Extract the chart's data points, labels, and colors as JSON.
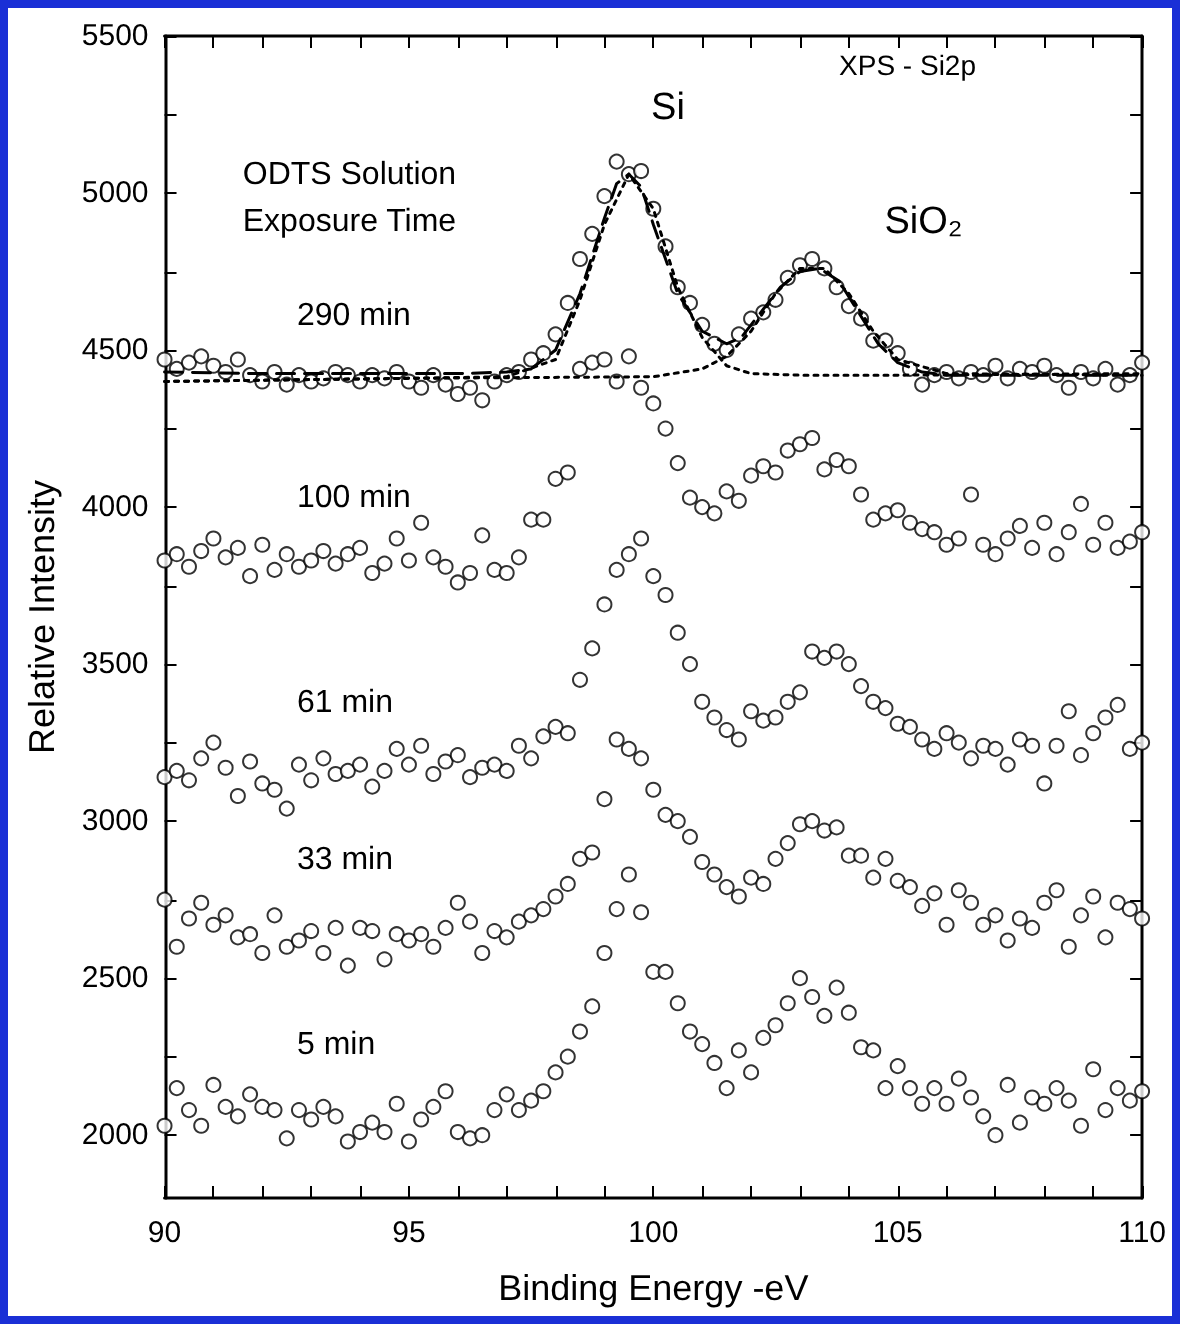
{
  "chart_data": {
    "type": "scatter",
    "xlabel": "Binding Energy -eV",
    "ylabel": "Relative Intensity",
    "annotations": [
      "XPS - Si2p",
      "ODTS Solution",
      "Exposure Time",
      {
        "text": "Si",
        "x": 99.4,
        "y": 5080
      },
      {
        "text": "SiO₂",
        "x": 103.4,
        "y": 4780
      }
    ],
    "x": [
      90,
      90.25,
      90.5,
      90.75,
      91,
      91.25,
      91.5,
      91.75,
      92,
      92.25,
      92.5,
      92.75,
      93,
      93.25,
      93.5,
      93.75,
      94,
      94.25,
      94.5,
      94.75,
      95,
      95.25,
      95.5,
      95.75,
      96,
      96.25,
      96.5,
      96.75,
      97,
      97.25,
      97.5,
      97.75,
      98,
      98.25,
      98.5,
      98.75,
      99,
      99.25,
      99.5,
      99.75,
      100,
      100.25,
      100.5,
      100.75,
      101,
      101.25,
      101.5,
      101.75,
      102,
      102.25,
      102.5,
      102.75,
      103,
      103.25,
      103.5,
      103.75,
      104,
      104.25,
      104.5,
      104.75,
      105,
      105.25,
      105.5,
      105.75,
      106,
      106.25,
      106.5,
      106.75,
      107,
      107.25,
      107.5,
      107.75,
      108,
      108.25,
      108.5,
      108.75,
      109,
      109.25,
      109.5,
      109.75,
      110
    ],
    "marker": "circle",
    "legend": false,
    "xlim": [
      90,
      110
    ],
    "ylim": [
      1800,
      5500
    ],
    "xticks": [
      90,
      {
        "value": 91,
        "label": null
      },
      {
        "value": 92,
        "label": null
      },
      {
        "value": 93,
        "label": null
      },
      {
        "value": 94,
        "label": null
      },
      95,
      {
        "value": 96,
        "label": null
      },
      {
        "value": 97,
        "label": null
      },
      {
        "value": 98,
        "label": null
      },
      {
        "value": 99,
        "label": null
      },
      100,
      {
        "value": 101,
        "label": null
      },
      {
        "value": 102,
        "label": null
      },
      {
        "value": 103,
        "label": null
      },
      {
        "value": 104,
        "label": null
      },
      105,
      {
        "value": 106,
        "label": null
      },
      {
        "value": 107,
        "label": null
      },
      {
        "value": 108,
        "label": null
      },
      {
        "value": 109,
        "label": null
      },
      110
    ],
    "yticks": [
      2000,
      {
        "value": 2250,
        "label": null
      },
      2500,
      {
        "value": 2750,
        "label": null
      },
      3000,
      {
        "value": 3250,
        "label": null
      },
      3500,
      {
        "value": 3750,
        "label": null
      },
      4000,
      {
        "value": 4250,
        "label": null
      },
      4500,
      {
        "value": 4750,
        "label": null
      },
      5000,
      {
        "value": 5250,
        "label": null
      },
      5500
    ],
    "series": [
      {
        "name": "290 min",
        "color": "#000000",
        "values": [
          4470,
          4440,
          4460,
          4480,
          4450,
          4430,
          4470,
          4420,
          4400,
          4430,
          4390,
          4420,
          4400,
          4410,
          4430,
          4420,
          4400,
          4420,
          4410,
          4430,
          4400,
          4380,
          4420,
          4390,
          4360,
          4380,
          4340,
          4400,
          4420,
          4430,
          4470,
          4490,
          4550,
          4650,
          4790,
          4870,
          4990,
          5100,
          5060,
          5070,
          4950,
          4830,
          4700,
          4650,
          4580,
          4520,
          4500,
          4550,
          4600,
          4620,
          4660,
          4730,
          4770,
          4790,
          4760,
          4700,
          4640,
          4600,
          4530,
          4530,
          4490,
          4440,
          4390,
          4420,
          4430,
          4410,
          4430,
          4420,
          4450,
          4410,
          4440,
          4430,
          4450,
          4420,
          4380,
          4430,
          4410,
          4440,
          4390,
          4420,
          4460
        ]
      },
      {
        "type": "line",
        "line_style": "dashed",
        "marker": "none",
        "color": "#000000",
        "x": [
          90,
          92,
          94,
          96,
          97,
          97.5,
          98,
          98.5,
          99,
          99.25,
          99.5,
          99.75,
          100,
          100.5,
          101,
          101.5,
          101.8,
          102.2,
          102.6,
          103,
          103.4,
          103.8,
          104.2,
          104.6,
          105,
          105.5,
          106,
          108,
          110
        ],
        "values": [
          4430,
          4425,
          4425,
          4425,
          4430,
          4440,
          4500,
          4680,
          4920,
          5030,
          5060,
          5020,
          4900,
          4680,
          4560,
          4520,
          4540,
          4620,
          4700,
          4750,
          4760,
          4720,
          4620,
          4520,
          4460,
          4430,
          4420,
          4420,
          4420
        ]
      },
      {
        "type": "line",
        "line_style": "dotted",
        "marker": "none",
        "color": "#000000",
        "x": [
          90,
          95,
          97,
          98,
          98.5,
          99,
          99.5,
          100,
          100.5,
          101,
          101.5,
          102,
          103,
          105,
          110
        ],
        "values": [
          4400,
          4410,
          4415,
          4470,
          4660,
          4900,
          5060,
          4950,
          4700,
          4540,
          4450,
          4425,
          4420,
          4420,
          4425
        ]
      },
      {
        "type": "line",
        "line_style": "dotted",
        "marker": "none",
        "color": "#000000",
        "x": [
          90,
          95,
          100,
          101,
          101.5,
          102,
          102.5,
          103,
          103.5,
          104,
          104.5,
          105,
          106,
          110
        ],
        "values": [
          4400,
          4410,
          4415,
          4440,
          4480,
          4560,
          4680,
          4760,
          4760,
          4680,
          4560,
          4470,
          4425,
          4420
        ]
      },
      {
        "name": "100 min",
        "color": "#000000",
        "values": [
          3830,
          3850,
          3810,
          3860,
          3900,
          3840,
          3870,
          3780,
          3880,
          3800,
          3850,
          3810,
          3830,
          3860,
          3820,
          3850,
          3870,
          3790,
          3820,
          3900,
          3830,
          3950,
          3840,
          3810,
          3760,
          3790,
          3910,
          3800,
          3790,
          3840,
          3960,
          3960,
          4090,
          4110,
          4440,
          4460,
          4470,
          4400,
          4480,
          4380,
          4330,
          4250,
          4140,
          4030,
          4000,
          3980,
          4050,
          4020,
          4100,
          4130,
          4110,
          4180,
          4200,
          4220,
          4120,
          4150,
          4130,
          4040,
          3960,
          3980,
          3990,
          3950,
          3930,
          3920,
          3880,
          3900,
          4040,
          3880,
          3850,
          3900,
          3940,
          3870,
          3950,
          3850,
          3920,
          4010,
          3880,
          3950,
          3870,
          3890,
          3920
        ]
      },
      {
        "name": "61 min",
        "color": "#000000",
        "values": [
          3140,
          3160,
          3130,
          3200,
          3250,
          3170,
          3080,
          3190,
          3120,
          3100,
          3040,
          3180,
          3130,
          3200,
          3150,
          3160,
          3180,
          3110,
          3160,
          3230,
          3180,
          3240,
          3150,
          3190,
          3210,
          3140,
          3170,
          3180,
          3160,
          3240,
          3200,
          3270,
          3300,
          3280,
          3450,
          3550,
          3690,
          3800,
          3850,
          3900,
          3780,
          3720,
          3600,
          3500,
          3380,
          3330,
          3290,
          3260,
          3350,
          3320,
          3330,
          3380,
          3410,
          3540,
          3520,
          3540,
          3500,
          3430,
          3380,
          3360,
          3310,
          3300,
          3260,
          3230,
          3280,
          3250,
          3200,
          3240,
          3230,
          3180,
          3260,
          3240,
          3120,
          3240,
          3350,
          3210,
          3280,
          3330,
          3370,
          3230,
          3250
        ]
      },
      {
        "name": "33 min",
        "color": "#000000",
        "values": [
          2750,
          2600,
          2690,
          2740,
          2670,
          2700,
          2630,
          2640,
          2580,
          2700,
          2600,
          2620,
          2650,
          2580,
          2660,
          2540,
          2660,
          2650,
          2560,
          2640,
          2620,
          2640,
          2600,
          2660,
          2740,
          2680,
          2580,
          2650,
          2630,
          2680,
          2700,
          2720,
          2760,
          2800,
          2880,
          2900,
          3070,
          3260,
          3230,
          3200,
          3100,
          3020,
          3000,
          2950,
          2870,
          2830,
          2790,
          2760,
          2820,
          2800,
          2880,
          2930,
          2990,
          3000,
          2970,
          2980,
          2890,
          2890,
          2820,
          2880,
          2810,
          2790,
          2730,
          2770,
          2670,
          2780,
          2740,
          2670,
          2700,
          2620,
          2690,
          2660,
          2740,
          2780,
          2600,
          2700,
          2760,
          2630,
          2740,
          2720,
          2690
        ]
      },
      {
        "name": "5 min",
        "color": "#000000",
        "values": [
          2030,
          2150,
          2080,
          2030,
          2160,
          2090,
          2060,
          2130,
          2090,
          2080,
          1990,
          2080,
          2050,
          2090,
          2060,
          1980,
          2010,
          2040,
          2010,
          2100,
          1980,
          2050,
          2090,
          2140,
          2010,
          1990,
          2000,
          2080,
          2130,
          2080,
          2110,
          2140,
          2200,
          2250,
          2330,
          2410,
          2580,
          2720,
          2830,
          2710,
          2520,
          2520,
          2420,
          2330,
          2290,
          2230,
          2150,
          2270,
          2200,
          2310,
          2350,
          2420,
          2500,
          2440,
          2380,
          2470,
          2390,
          2280,
          2270,
          2150,
          2220,
          2150,
          2100,
          2150,
          2100,
          2180,
          2120,
          2060,
          2000,
          2160,
          2040,
          2120,
          2100,
          2150,
          2110,
          2030,
          2210,
          2080,
          2150,
          2110,
          2140
        ]
      }
    ]
  }
}
